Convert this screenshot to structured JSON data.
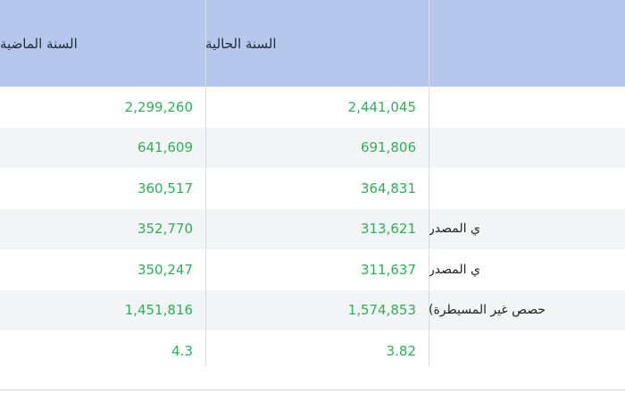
{
  "table": {
    "header": [
      "السنة الحالية",
      "السنة الماضية"
    ],
    "rows": [
      {
        "current": "2,441,045",
        "previous": "2,299,260"
      },
      {
        "current": "691,806",
        "previous": "641,609"
      },
      {
        "current": "364,831",
        "previous": "360,517"
      },
      {
        "label": "ي المصدر",
        "current": "313,621",
        "previous": "352,770"
      },
      {
        "label": "ي المصدر",
        "current": "311,637",
        "previous": "350,247"
      },
      {
        "label": "حصص غير المسيطرة)",
        "current": "1,574,853",
        "previous": "1,451,816"
      },
      {
        "current": "3.82",
        "previous": "4.3"
      }
    ]
  }
}
